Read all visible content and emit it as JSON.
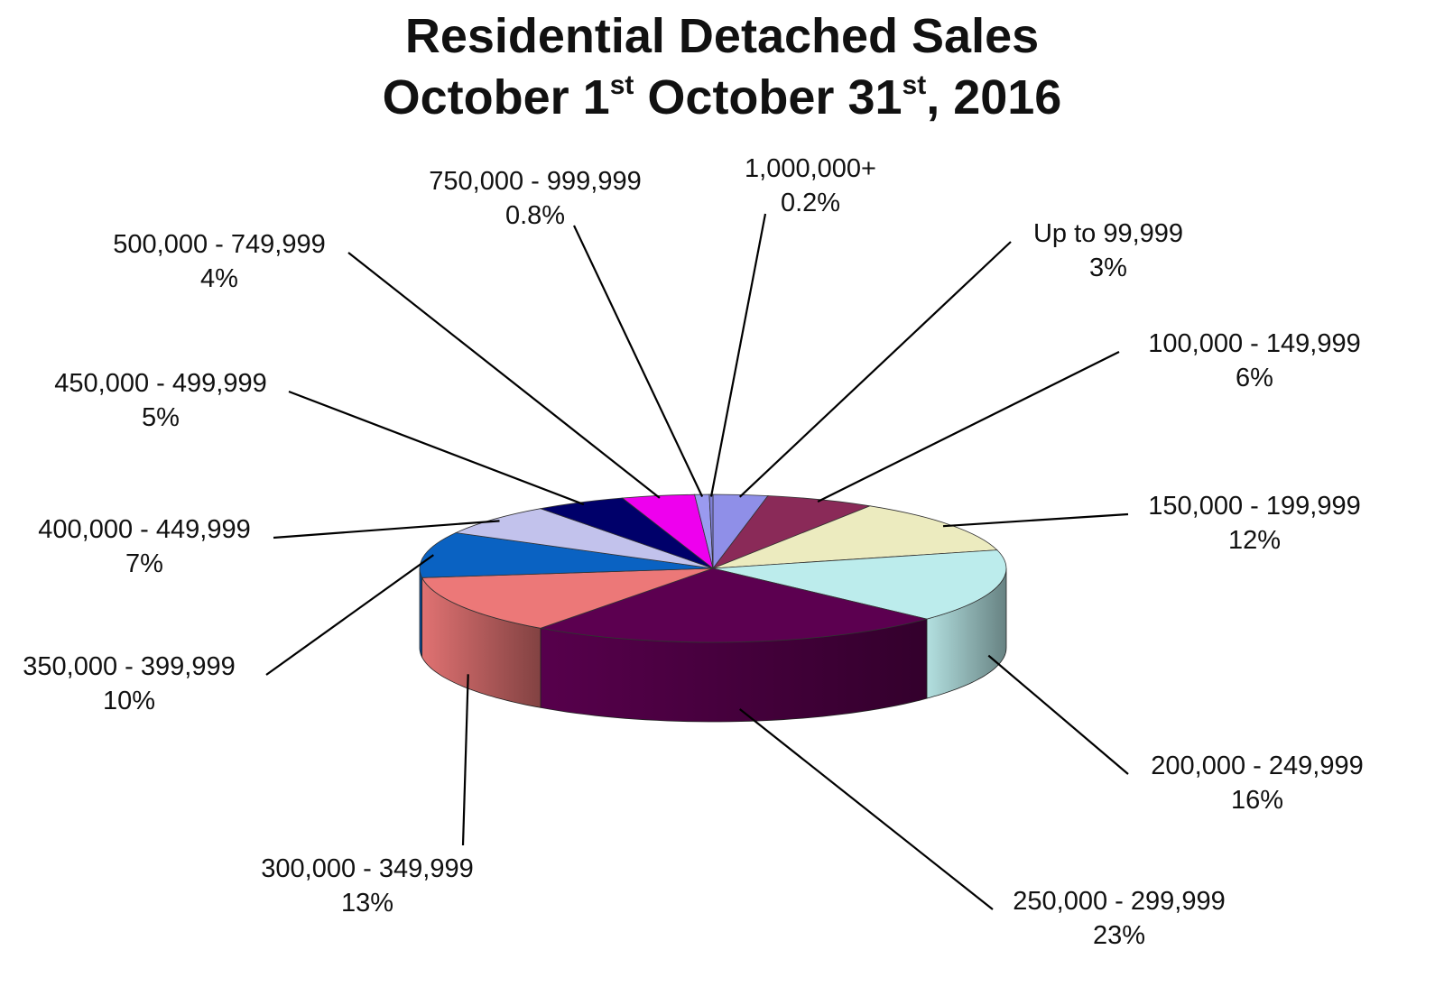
{
  "chart_data": {
    "type": "pie",
    "title": {
      "line1": "Residential Detached Sales",
      "line2": [
        {
          "text": "October 1"
        },
        {
          "text": "st",
          "sup": true
        },
        {
          "text": " October 31"
        },
        {
          "text": "st",
          "sup": true
        },
        {
          "text": ", 2016"
        }
      ]
    },
    "unit": "%",
    "slices": [
      {
        "label": "Up to 99,999",
        "value": 3,
        "value_label": "3%",
        "color": "#8f8fe8"
      },
      {
        "label": "100,000 - 149,999",
        "value": 6,
        "value_label": "6%",
        "color": "#8a2a58"
      },
      {
        "label": "150,000 - 199,999",
        "value": 12,
        "value_label": "12%",
        "color": "#ecebbf"
      },
      {
        "label": "200,000 - 249,999",
        "value": 16,
        "value_label": "16%",
        "color": "#bcecec"
      },
      {
        "label": "250,000 - 299,999",
        "value": 23,
        "value_label": "23%",
        "color": "#5c0050"
      },
      {
        "label": "300,000 - 349,999",
        "value": 13,
        "value_label": "13%",
        "color": "#ec7878"
      },
      {
        "label": "350,000 - 399,999",
        "value": 10,
        "value_label": "10%",
        "color": "#0a62c2"
      },
      {
        "label": "400,000 - 449,999",
        "value": 7,
        "value_label": "7%",
        "color": "#c2c2ec"
      },
      {
        "label": "450,000 - 499,999",
        "value": 5,
        "value_label": "5%",
        "color": "#00006a"
      },
      {
        "label": "500,000 - 749,999",
        "value": 4,
        "value_label": "4%",
        "color": "#ee00ee"
      },
      {
        "label": "750,000 - 999,999",
        "value": 0.8,
        "value_label": "0.8%",
        "color": "#9a9af0"
      },
      {
        "label": "1,000,000+",
        "value": 0.2,
        "value_label": "0.2%",
        "color": "#8080d8"
      }
    ]
  }
}
